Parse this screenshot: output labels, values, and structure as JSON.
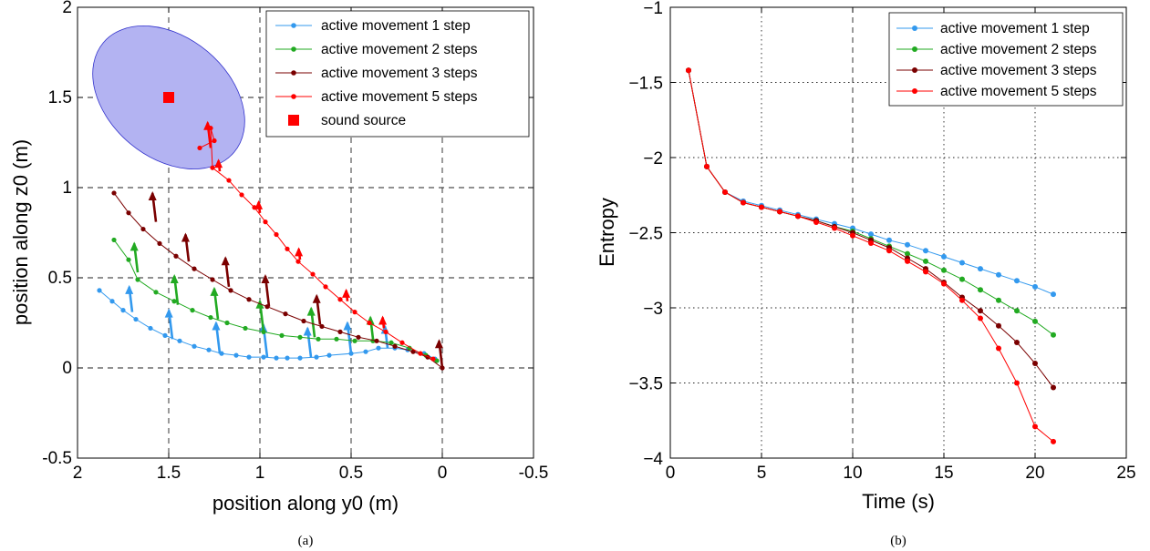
{
  "chart_data": [
    {
      "type": "scatter",
      "caption": "(a)",
      "xlabel": "position along y0 (m)",
      "ylabel": "position along z0 (m)",
      "xlim": [
        2,
        -0.5
      ],
      "ylim": [
        -0.5,
        2
      ],
      "x_reversed": true,
      "xticks": [
        "2",
        "1.5",
        "1",
        "0.5",
        "0",
        "-0.5"
      ],
      "yticks": [
        "-0.5",
        "0",
        "0.5",
        "1",
        "1.5",
        "2"
      ],
      "grid": true,
      "legend_position": "top-right",
      "vertical_guides": [
        1.5,
        0
      ],
      "horizontal_guides": [
        0
      ],
      "ellipse": {
        "center": [
          1.5,
          1.5
        ],
        "semi_axes": [
          0.78,
          0.55
        ],
        "angle_deg": -40,
        "color": "#b3b3f2",
        "edge": "#3333cc"
      },
      "sound_source": {
        "name": "sound source",
        "x": 1.5,
        "y": 1.5,
        "color": "#ff0000"
      },
      "series": [
        {
          "name": "active movement 1 step",
          "color": "#3399ee",
          "points": [
            [
              1.88,
              0.43
            ],
            [
              1.81,
              0.37
            ],
            [
              1.75,
              0.32
            ],
            [
              1.68,
              0.27
            ],
            [
              1.6,
              0.22
            ],
            [
              1.52,
              0.18
            ],
            [
              1.44,
              0.15
            ],
            [
              1.36,
              0.12
            ],
            [
              1.28,
              0.1
            ],
            [
              1.21,
              0.08
            ],
            [
              1.13,
              0.07
            ],
            [
              1.06,
              0.06
            ],
            [
              0.98,
              0.06
            ],
            [
              0.91,
              0.055
            ],
            [
              0.85,
              0.055
            ],
            [
              0.78,
              0.055
            ],
            [
              0.69,
              0.06
            ],
            [
              0.62,
              0.07
            ],
            [
              0.5,
              0.08
            ],
            [
              0.42,
              0.09
            ],
            [
              0.35,
              0.11
            ],
            [
              0.26,
              0.11
            ],
            [
              0.19,
              0.1
            ],
            [
              0.1,
              0.08
            ],
            [
              0.04,
              0.05
            ]
          ],
          "arrows": [
            [
              1.7,
              0.31,
              0.14
            ],
            [
              1.48,
              0.16,
              0.16
            ],
            [
              1.22,
              0.08,
              0.17
            ],
            [
              0.96,
              0.06,
              0.18
            ],
            [
              0.72,
              0.06,
              0.16
            ],
            [
              0.5,
              0.08,
              0.17
            ],
            [
              0.3,
              0.11,
              0.12
            ]
          ]
        },
        {
          "name": "active movement 2 steps",
          "color": "#22aa22",
          "points": [
            [
              1.8,
              0.71
            ],
            [
              1.72,
              0.6
            ],
            [
              1.67,
              0.49
            ],
            [
              1.57,
              0.42
            ],
            [
              1.47,
              0.37
            ],
            [
              1.37,
              0.32
            ],
            [
              1.27,
              0.28
            ],
            [
              1.18,
              0.25
            ],
            [
              1.08,
              0.22
            ],
            [
              0.98,
              0.2
            ],
            [
              0.88,
              0.18
            ],
            [
              0.78,
              0.17
            ],
            [
              0.68,
              0.16
            ],
            [
              0.58,
              0.16
            ],
            [
              0.48,
              0.15
            ],
            [
              0.38,
              0.15
            ],
            [
              0.28,
              0.14
            ],
            [
              0.18,
              0.11
            ],
            [
              0.09,
              0.07
            ],
            [
              0.03,
              0.04
            ]
          ],
          "arrows": [
            [
              1.67,
              0.53,
              0.16
            ],
            [
              1.45,
              0.35,
              0.16
            ],
            [
              1.23,
              0.27,
              0.17
            ],
            [
              0.98,
              0.2,
              0.17
            ],
            [
              0.7,
              0.17,
              0.16
            ],
            [
              0.38,
              0.16,
              0.12
            ]
          ]
        },
        {
          "name": "active movement 3 steps",
          "color": "#7a0000",
          "points": [
            [
              1.8,
              0.97
            ],
            [
              1.72,
              0.86
            ],
            [
              1.64,
              0.77
            ],
            [
              1.55,
              0.69
            ],
            [
              1.46,
              0.62
            ],
            [
              1.36,
              0.55
            ],
            [
              1.26,
              0.49
            ],
            [
              1.16,
              0.43
            ],
            [
              1.06,
              0.38
            ],
            [
              0.96,
              0.34
            ],
            [
              0.86,
              0.3
            ],
            [
              0.76,
              0.26
            ],
            [
              0.66,
              0.23
            ],
            [
              0.56,
              0.2
            ],
            [
              0.46,
              0.17
            ],
            [
              0.36,
              0.15
            ],
            [
              0.26,
              0.12
            ],
            [
              0.16,
              0.09
            ],
            [
              0.08,
              0.06
            ],
            [
              0.0,
              0.0
            ]
          ],
          "arrows": [
            [
              1.57,
              0.81,
              0.16
            ],
            [
              1.39,
              0.59,
              0.15
            ],
            [
              1.17,
              0.45,
              0.16
            ],
            [
              0.95,
              0.34,
              0.17
            ],
            [
              0.67,
              0.24,
              0.16
            ],
            [
              0.0,
              0.0,
              0.15
            ]
          ]
        },
        {
          "name": "active movement 5 steps",
          "color": "#ff0000",
          "points": [
            [
              1.33,
              1.22
            ],
            [
              1.25,
              1.26
            ],
            [
              1.27,
              1.33
            ],
            [
              1.26,
              1.11
            ],
            [
              1.17,
              1.04
            ],
            [
              1.1,
              0.96
            ],
            [
              1.03,
              0.89
            ],
            [
              0.97,
              0.81
            ],
            [
              0.91,
              0.74
            ],
            [
              0.85,
              0.66
            ],
            [
              0.79,
              0.59
            ],
            [
              0.71,
              0.52
            ],
            [
              0.64,
              0.45
            ],
            [
              0.56,
              0.38
            ],
            [
              0.48,
              0.31
            ],
            [
              0.4,
              0.25
            ],
            [
              0.31,
              0.2
            ],
            [
              0.22,
              0.14
            ],
            [
              0.12,
              0.08
            ],
            [
              0.05,
              0.05
            ]
          ],
          "arrows": [
            [
              1.27,
              1.22,
              0.14
            ],
            [
              1.22,
              1.09,
              0.06
            ],
            [
              1.0,
              0.86,
              0.06
            ],
            [
              0.78,
              0.6,
              0.06
            ],
            [
              0.52,
              0.37,
              0.06
            ],
            [
              0.32,
              0.22,
              0.06
            ]
          ]
        }
      ]
    },
    {
      "type": "line",
      "caption": "(b)",
      "xlabel": "Time (s)",
      "ylabel": "Entropy",
      "xlim": [
        0,
        25
      ],
      "ylim": [
        -4,
        -1
      ],
      "xticks": [
        "0",
        "5",
        "10",
        "15",
        "20",
        "25"
      ],
      "yticks": [
        "-1",
        "-1.5",
        "-2",
        "-2.5",
        "-3",
        "-3.5",
        "-4"
      ],
      "grid": true,
      "legend_position": "top-right",
      "vertical_guides": [
        10
      ],
      "x": [
        1,
        2,
        3,
        4,
        5,
        6,
        7,
        8,
        9,
        10,
        11,
        12,
        13,
        14,
        15,
        16,
        17,
        18,
        19,
        20,
        21
      ],
      "series": [
        {
          "name": "active movement 1 step",
          "color": "#3399ee",
          "values": [
            -1.42,
            -2.06,
            -2.23,
            -2.29,
            -2.32,
            -2.35,
            -2.38,
            -2.41,
            -2.44,
            -2.47,
            -2.51,
            -2.55,
            -2.58,
            -2.62,
            -2.66,
            -2.7,
            -2.74,
            -2.78,
            -2.82,
            -2.86,
            -2.91
          ]
        },
        {
          "name": "active movement 2 steps",
          "color": "#22aa22",
          "values": [
            -1.42,
            -2.06,
            -2.23,
            -2.3,
            -2.33,
            -2.36,
            -2.39,
            -2.42,
            -2.46,
            -2.49,
            -2.54,
            -2.59,
            -2.64,
            -2.69,
            -2.75,
            -2.81,
            -2.88,
            -2.95,
            -3.02,
            -3.09,
            -3.18
          ]
        },
        {
          "name": "active movement 3 steps",
          "color": "#7a0000",
          "values": [
            -1.42,
            -2.06,
            -2.23,
            -2.3,
            -2.33,
            -2.36,
            -2.39,
            -2.42,
            -2.46,
            -2.5,
            -2.55,
            -2.6,
            -2.67,
            -2.74,
            -2.83,
            -2.93,
            -3.02,
            -3.12,
            -3.23,
            -3.37,
            -3.53
          ]
        },
        {
          "name": "active movement 5 steps",
          "color": "#ff0000",
          "values": [
            -1.42,
            -2.06,
            -2.23,
            -2.3,
            -2.33,
            -2.36,
            -2.39,
            -2.43,
            -2.47,
            -2.52,
            -2.57,
            -2.62,
            -2.69,
            -2.76,
            -2.84,
            -2.95,
            -3.07,
            -3.27,
            -3.5,
            -3.79,
            -3.89
          ]
        }
      ]
    }
  ]
}
